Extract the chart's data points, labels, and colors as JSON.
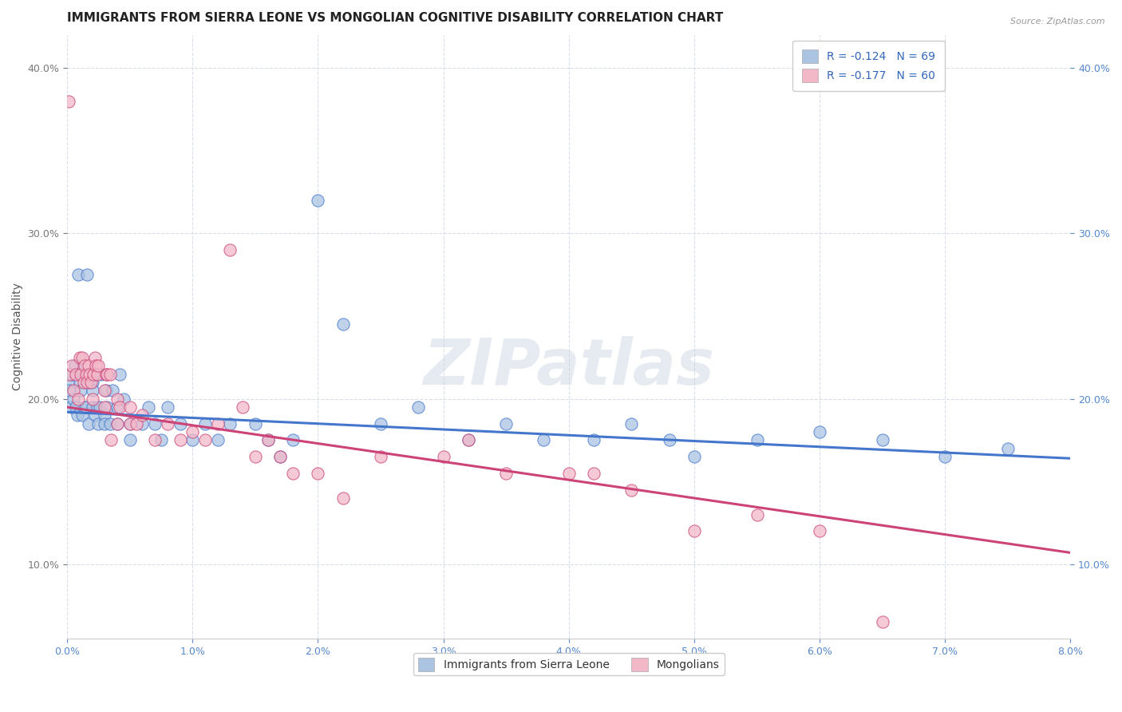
{
  "title": "IMMIGRANTS FROM SIERRA LEONE VS MONGOLIAN COGNITIVE DISABILITY CORRELATION CHART",
  "source": "Source: ZipAtlas.com",
  "xlabel": "",
  "ylabel": "Cognitive Disability",
  "xlim": [
    0.0,
    0.08
  ],
  "ylim": [
    0.055,
    0.42
  ],
  "yticks": [
    0.1,
    0.2,
    0.3,
    0.4
  ],
  "blue_color": "#aac4e2",
  "pink_color": "#f2b8c8",
  "blue_line_color": "#4477cc",
  "pink_line_color": "#cc4477",
  "R_blue": -0.124,
  "N_blue": 69,
  "R_pink": -0.177,
  "N_pink": 60,
  "blue_intercept": 0.192,
  "blue_slope": -0.35,
  "pink_intercept": 0.195,
  "pink_slope": -1.1,
  "blue_scatter_x": [
    0.0001,
    0.0002,
    0.0003,
    0.0004,
    0.0005,
    0.0006,
    0.0007,
    0.0008,
    0.0009,
    0.001,
    0.0011,
    0.0012,
    0.0013,
    0.0014,
    0.0015,
    0.0016,
    0.0017,
    0.0018,
    0.002,
    0.002,
    0.002,
    0.0022,
    0.0023,
    0.0024,
    0.0025,
    0.0026,
    0.0027,
    0.003,
    0.003,
    0.0031,
    0.0032,
    0.0034,
    0.0036,
    0.004,
    0.004,
    0.0042,
    0.0045,
    0.005,
    0.005,
    0.006,
    0.0065,
    0.007,
    0.0075,
    0.008,
    0.009,
    0.01,
    0.011,
    0.012,
    0.013,
    0.015,
    0.016,
    0.017,
    0.018,
    0.02,
    0.022,
    0.025,
    0.028,
    0.032,
    0.035,
    0.038,
    0.042,
    0.045,
    0.048,
    0.05,
    0.055,
    0.06,
    0.065,
    0.07,
    0.075
  ],
  "blue_scatter_y": [
    0.21,
    0.205,
    0.195,
    0.215,
    0.2,
    0.22,
    0.195,
    0.19,
    0.275,
    0.21,
    0.205,
    0.19,
    0.215,
    0.195,
    0.195,
    0.275,
    0.185,
    0.21,
    0.21,
    0.195,
    0.205,
    0.19,
    0.215,
    0.195,
    0.185,
    0.195,
    0.215,
    0.19,
    0.185,
    0.205,
    0.195,
    0.185,
    0.205,
    0.185,
    0.195,
    0.215,
    0.2,
    0.185,
    0.175,
    0.185,
    0.195,
    0.185,
    0.175,
    0.195,
    0.185,
    0.175,
    0.185,
    0.175,
    0.185,
    0.185,
    0.175,
    0.165,
    0.175,
    0.32,
    0.245,
    0.185,
    0.195,
    0.175,
    0.185,
    0.175,
    0.175,
    0.185,
    0.175,
    0.165,
    0.175,
    0.18,
    0.175,
    0.165,
    0.17
  ],
  "pink_scatter_x": [
    0.0001,
    0.0002,
    0.0004,
    0.0005,
    0.0007,
    0.0009,
    0.001,
    0.0011,
    0.0012,
    0.0013,
    0.0014,
    0.0015,
    0.0016,
    0.0017,
    0.0018,
    0.0019,
    0.002,
    0.0021,
    0.0022,
    0.0023,
    0.0024,
    0.0025,
    0.003,
    0.003,
    0.0031,
    0.0032,
    0.0034,
    0.0035,
    0.004,
    0.004,
    0.0042,
    0.005,
    0.005,
    0.0055,
    0.006,
    0.007,
    0.008,
    0.009,
    0.01,
    0.011,
    0.012,
    0.013,
    0.014,
    0.015,
    0.016,
    0.017,
    0.018,
    0.02,
    0.022,
    0.025,
    0.03,
    0.032,
    0.035,
    0.04,
    0.042,
    0.045,
    0.05,
    0.055,
    0.06,
    0.065
  ],
  "pink_scatter_y": [
    0.38,
    0.215,
    0.22,
    0.205,
    0.215,
    0.2,
    0.225,
    0.215,
    0.225,
    0.21,
    0.22,
    0.215,
    0.21,
    0.22,
    0.215,
    0.21,
    0.2,
    0.215,
    0.225,
    0.22,
    0.215,
    0.22,
    0.205,
    0.195,
    0.215,
    0.215,
    0.215,
    0.175,
    0.185,
    0.2,
    0.195,
    0.195,
    0.185,
    0.185,
    0.19,
    0.175,
    0.185,
    0.175,
    0.18,
    0.175,
    0.185,
    0.29,
    0.195,
    0.165,
    0.175,
    0.165,
    0.155,
    0.155,
    0.14,
    0.165,
    0.165,
    0.175,
    0.155,
    0.155,
    0.155,
    0.145,
    0.12,
    0.13,
    0.12,
    0.065
  ],
  "background_color": "#ffffff",
  "watermark_text": "ZIPatlas",
  "watermark_color": "#c8d4e0",
  "watermark_alpha": 0.45,
  "grid_color": "#d8dde8",
  "title_fontsize": 11,
  "axis_label_fontsize": 10,
  "tick_fontsize": 9,
  "legend_fontsize": 10
}
